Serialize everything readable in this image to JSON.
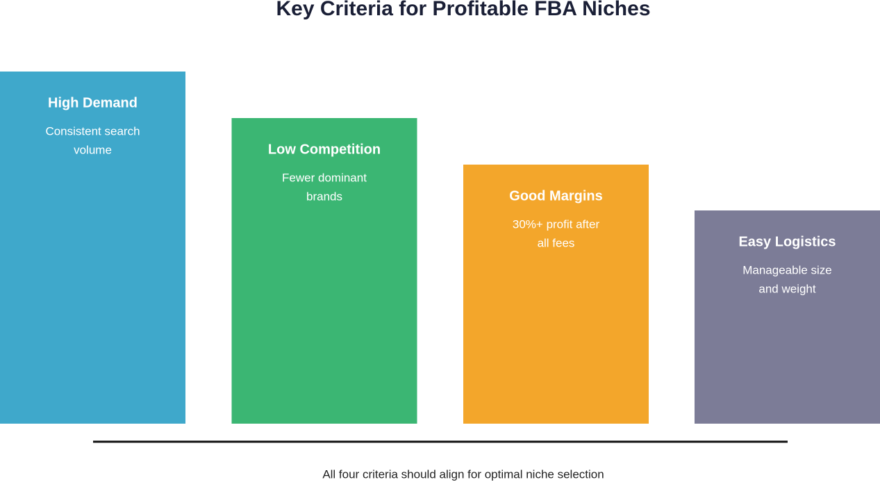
{
  "title": "Key Criteria for Profitable FBA Niches",
  "cards": [
    {
      "title": "High Demand",
      "lines": [
        "Consistent search",
        "volume"
      ]
    },
    {
      "title": "Low Competition",
      "lines": [
        "Fewer dominant",
        "brands"
      ]
    },
    {
      "title": "Good Margins",
      "lines": [
        "30%+ profit after",
        "all fees"
      ]
    },
    {
      "title": "Easy Logistics",
      "lines": [
        "Manageable size",
        "and weight"
      ]
    }
  ],
  "footer": "All four criteria should align for optimal niche selection"
}
